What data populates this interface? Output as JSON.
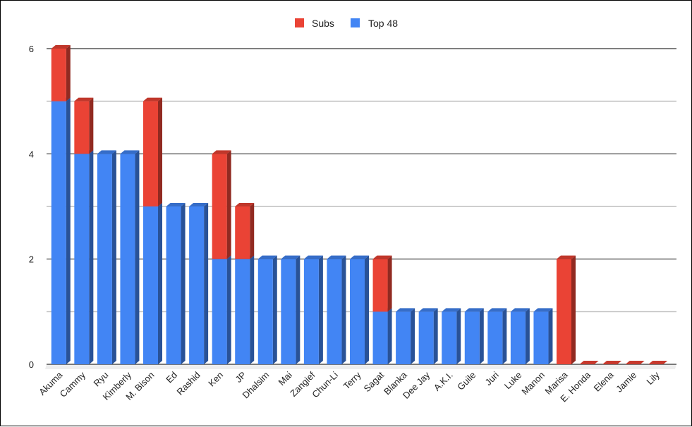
{
  "chart_data": {
    "type": "bar",
    "stacked": true,
    "style": "3d",
    "categories": [
      "Akuma",
      "Cammy",
      "Ryu",
      "Kimberly",
      "M. Bison",
      "Ed",
      "Rashid",
      "Ken",
      "JP",
      "Dhalsim",
      "Mai",
      "Zangief",
      "Chun-Li",
      "Terry",
      "Sagat",
      "Blanka",
      "Dee Jay",
      "A.K.I.",
      "Guile",
      "Juri",
      "Luke",
      "Manon",
      "Marisa",
      "E. Honda",
      "Elena",
      "Jamie",
      "Lily"
    ],
    "series": [
      {
        "name": "Top 48",
        "color": "#4285f4",
        "values": [
          5,
          4,
          4,
          4,
          3,
          3,
          3,
          2,
          2,
          2,
          2,
          2,
          2,
          2,
          1,
          1,
          1,
          1,
          1,
          1,
          1,
          1,
          0,
          0,
          0,
          0,
          0
        ]
      },
      {
        "name": "Subs",
        "color": "#ea4335",
        "values": [
          1,
          1,
          0,
          0,
          2,
          0,
          0,
          2,
          1,
          0,
          0,
          0,
          0,
          0,
          1,
          0,
          0,
          0,
          0,
          0,
          0,
          0,
          2,
          0,
          0,
          0,
          0
        ]
      }
    ],
    "legend_order": [
      "Subs",
      "Top 48"
    ],
    "legend_position": "top",
    "ylim": [
      0,
      6
    ],
    "yticks": [
      0,
      2,
      4,
      6
    ],
    "minor_gridlines": [
      1,
      3,
      5
    ],
    "grid": true,
    "title": "",
    "xlabel": "",
    "ylabel": ""
  }
}
